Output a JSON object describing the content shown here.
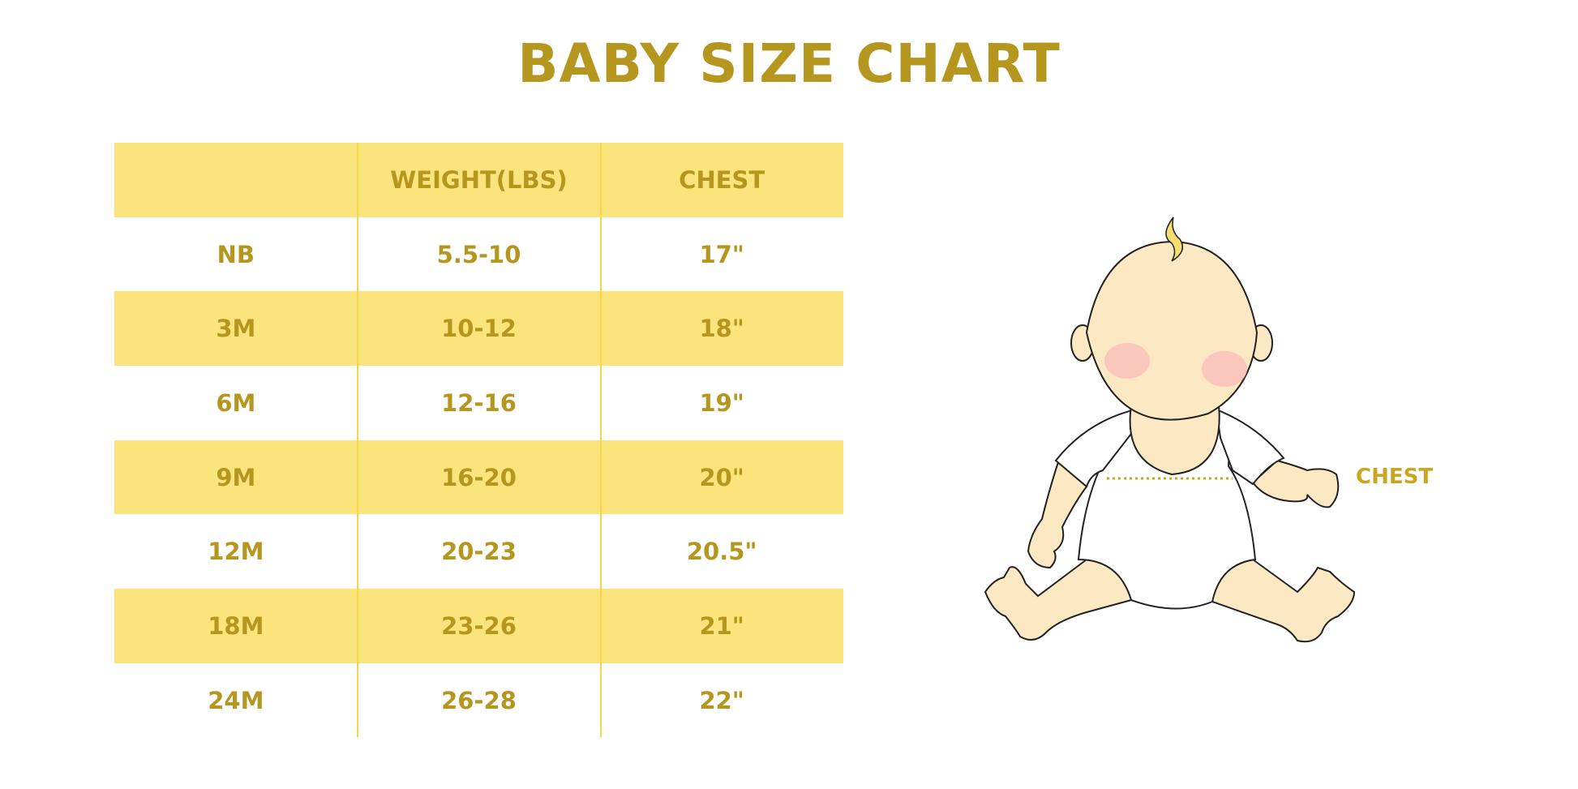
{
  "title": "BABY SIZE CHART",
  "table": {
    "headers": [
      "",
      "WEIGHT(LBS)",
      "CHEST"
    ],
    "rows": [
      [
        "NB",
        "5.5-10",
        "17\""
      ],
      [
        "3M",
        "10-12",
        "18\""
      ],
      [
        "6M",
        "12-16",
        "19\""
      ],
      [
        "9M",
        "16-20",
        "20\""
      ],
      [
        "12M",
        "20-23",
        "20.5\""
      ],
      [
        "18M",
        "23-26",
        "21\""
      ],
      [
        "24M",
        "26-28",
        "22\""
      ]
    ]
  },
  "illustration": {
    "chest_label": "CHEST"
  },
  "colors": {
    "text": "#b5961f",
    "band": "#fbe47c",
    "skin": "#fde8c4",
    "hair": "#f7dc6f"
  }
}
